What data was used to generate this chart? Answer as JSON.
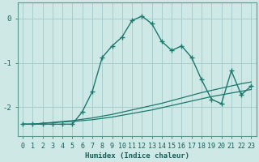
{
  "xlabel": "Humidex (Indice chaleur)",
  "bg_color": "#cde8e5",
  "grid_color": "#a8cece",
  "line_color": "#1a7a6e",
  "xlim": [
    -0.5,
    23.5
  ],
  "ylim": [
    -2.65,
    0.35
  ],
  "yticks": [
    0,
    -1,
    -2
  ],
  "x": [
    0,
    1,
    2,
    3,
    4,
    5,
    6,
    7,
    8,
    9,
    10,
    11,
    12,
    13,
    14,
    15,
    16,
    17,
    18,
    19,
    20,
    21,
    22,
    23
  ],
  "y_main": [
    -2.38,
    -2.38,
    -2.38,
    -2.38,
    -2.38,
    -2.38,
    -2.1,
    -1.65,
    -0.88,
    -0.62,
    -0.42,
    -0.05,
    0.05,
    -0.12,
    -0.52,
    -0.72,
    -0.62,
    -0.88,
    -1.38,
    -1.82,
    -1.92,
    -1.18,
    -1.72,
    -1.52
  ],
  "y_ref1": [
    -2.38,
    -2.38,
    -2.36,
    -2.35,
    -2.33,
    -2.32,
    -2.3,
    -2.28,
    -2.25,
    -2.22,
    -2.18,
    -2.14,
    -2.1,
    -2.06,
    -2.01,
    -1.96,
    -1.91,
    -1.86,
    -1.81,
    -1.76,
    -1.72,
    -1.68,
    -1.64,
    -1.6
  ],
  "y_ref2": [
    -2.38,
    -2.38,
    -2.36,
    -2.34,
    -2.32,
    -2.3,
    -2.27,
    -2.24,
    -2.2,
    -2.16,
    -2.11,
    -2.06,
    -2.01,
    -1.96,
    -1.91,
    -1.85,
    -1.79,
    -1.73,
    -1.67,
    -1.62,
    -1.57,
    -1.52,
    -1.47,
    -1.43
  ],
  "xlabel_fontsize": 6.5,
  "tick_fontsize": 6.0,
  "ytick_fontsize": 6.5
}
